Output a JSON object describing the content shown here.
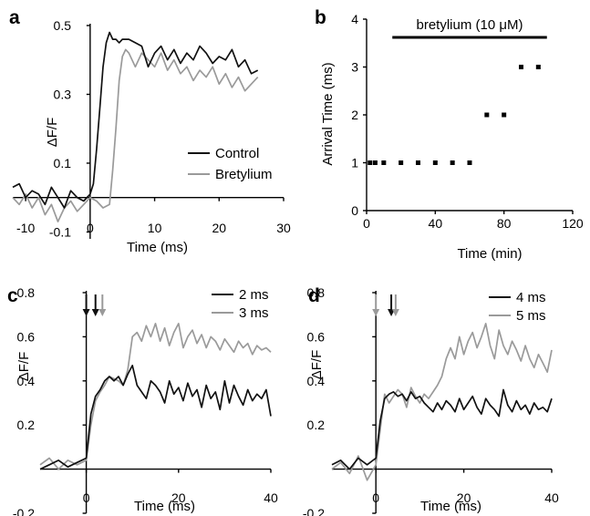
{
  "colors": {
    "black": "#111111",
    "gray": "#9a9a9a"
  },
  "chart_data": [
    {
      "panel": "a",
      "type": "line",
      "xlabel": "Time (ms)",
      "ylabel": "ΔF/F",
      "xlim": [
        -12,
        30
      ],
      "ylim": [
        -0.12,
        0.5
      ],
      "xticks": [
        -10,
        0,
        10,
        20,
        30
      ],
      "yticks": [
        -0.1,
        0.1,
        0.3,
        0.5
      ],
      "ytick_labels": [
        "-0.1",
        "0.1",
        "0.3",
        "0.5"
      ],
      "legend_position": "right",
      "series": [
        {
          "name": "Control",
          "color": "#111111",
          "x": [
            -12,
            -11,
            -10,
            -9,
            -8,
            -7,
            -6,
            -5,
            -4,
            -3,
            -2,
            -1,
            0,
            0.5,
            1,
            1.5,
            2,
            2.5,
            3,
            3.5,
            4,
            4.5,
            5,
            6,
            7,
            8,
            9,
            10,
            11,
            12,
            13,
            14,
            15,
            16,
            17,
            18,
            19,
            20,
            21,
            22,
            23,
            24,
            25,
            26
          ],
          "y": [
            0.03,
            0.04,
            0.0,
            0.02,
            0.01,
            -0.02,
            0.03,
            0.0,
            -0.03,
            0.02,
            0.0,
            -0.01,
            0.01,
            0.04,
            0.14,
            0.26,
            0.38,
            0.45,
            0.48,
            0.46,
            0.46,
            0.45,
            0.46,
            0.46,
            0.45,
            0.44,
            0.38,
            0.42,
            0.44,
            0.4,
            0.43,
            0.39,
            0.42,
            0.4,
            0.44,
            0.42,
            0.39,
            0.41,
            0.4,
            0.43,
            0.38,
            0.4,
            0.36,
            0.37
          ]
        },
        {
          "name": "Bretylium",
          "color": "#9a9a9a",
          "x": [
            -12,
            -11,
            -10,
            -9,
            -8,
            -7,
            -6,
            -5,
            -4,
            -3,
            -2,
            -1,
            0,
            1,
            2,
            3,
            3.5,
            4,
            4.5,
            5,
            5.5,
            6,
            7,
            8,
            9,
            10,
            11,
            12,
            13,
            14,
            15,
            16,
            17,
            18,
            19,
            20,
            21,
            22,
            23,
            24,
            25,
            26
          ],
          "y": [
            0.0,
            -0.02,
            0.01,
            -0.03,
            0.0,
            -0.05,
            -0.02,
            -0.07,
            -0.03,
            -0.01,
            -0.04,
            -0.02,
            0.0,
            -0.01,
            -0.03,
            -0.02,
            0.08,
            0.2,
            0.34,
            0.41,
            0.43,
            0.42,
            0.38,
            0.42,
            0.4,
            0.38,
            0.42,
            0.37,
            0.4,
            0.36,
            0.38,
            0.34,
            0.37,
            0.35,
            0.38,
            0.33,
            0.36,
            0.32,
            0.35,
            0.31,
            0.33,
            0.35
          ]
        }
      ]
    },
    {
      "panel": "b",
      "type": "scatter",
      "xlabel": "Time (min)",
      "ylabel": "Arrival Time (ms)",
      "xlim": [
        0,
        120
      ],
      "ylim": [
        0,
        4
      ],
      "xticks": [
        0,
        40,
        80,
        120
      ],
      "yticks": [
        0,
        1,
        2,
        3,
        4
      ],
      "annotation": "bretylium (10 μM)",
      "annotation_bar": [
        15,
        105
      ],
      "series": [
        {
          "x": [
            2,
            5,
            10,
            20,
            30,
            40,
            50,
            60,
            70,
            80,
            90,
            100
          ],
          "y": [
            1,
            1,
            1,
            1,
            1,
            1,
            1,
            1,
            2,
            2,
            3,
            3
          ]
        }
      ]
    },
    {
      "panel": "c",
      "type": "line",
      "xlabel": "Time (ms)",
      "ylabel": "ΔF/F",
      "xlim": [
        -10,
        40
      ],
      "ylim": [
        -0.2,
        0.8
      ],
      "xticks": [
        0,
        20,
        40
      ],
      "yticks": [
        -0.2,
        0.2,
        0.4,
        0.6,
        0.8
      ],
      "ytick_labels": [
        "-0.2",
        "0.2",
        "0.4",
        "0.6",
        "0.8"
      ],
      "arrows": [
        {
          "x": 0,
          "color": "#111111"
        },
        {
          "x": 2,
          "color": "#111111"
        },
        {
          "x": 3.5,
          "color": "#9a9a9a"
        }
      ],
      "legend_position": "top-right",
      "series": [
        {
          "name": "2 ms",
          "color": "#111111",
          "x": [
            -10,
            -8,
            -6,
            -4,
            -2,
            0,
            1,
            2,
            3,
            4,
            5,
            6,
            7,
            8,
            9,
            10,
            11,
            12,
            13,
            14,
            15,
            16,
            17,
            18,
            19,
            20,
            21,
            22,
            23,
            24,
            25,
            26,
            27,
            28,
            29,
            30,
            31,
            32,
            33,
            34,
            35,
            36,
            37,
            38,
            39,
            40
          ],
          "y": [
            0.0,
            0.02,
            0.04,
            0.01,
            0.03,
            0.05,
            0.25,
            0.33,
            0.36,
            0.4,
            0.42,
            0.4,
            0.42,
            0.38,
            0.43,
            0.47,
            0.38,
            0.35,
            0.32,
            0.4,
            0.38,
            0.35,
            0.3,
            0.4,
            0.34,
            0.37,
            0.31,
            0.39,
            0.33,
            0.36,
            0.28,
            0.38,
            0.32,
            0.35,
            0.27,
            0.4,
            0.3,
            0.38,
            0.33,
            0.29,
            0.36,
            0.31,
            0.34,
            0.32,
            0.36,
            0.24
          ]
        },
        {
          "name": "3 ms",
          "color": "#9a9a9a",
          "x": [
            -10,
            -8,
            -6,
            -4,
            -2,
            0,
            1,
            2,
            3,
            4,
            5,
            6,
            7,
            8,
            9,
            10,
            11,
            12,
            13,
            14,
            15,
            16,
            17,
            18,
            19,
            20,
            21,
            22,
            23,
            24,
            25,
            26,
            27,
            28,
            29,
            30,
            31,
            32,
            33,
            34,
            35,
            36,
            37,
            38,
            39,
            40
          ],
          "y": [
            0.02,
            0.05,
            0.0,
            0.04,
            0.02,
            0.04,
            0.2,
            0.31,
            0.35,
            0.38,
            0.42,
            0.41,
            0.4,
            0.38,
            0.45,
            0.6,
            0.62,
            0.58,
            0.65,
            0.6,
            0.66,
            0.58,
            0.64,
            0.56,
            0.62,
            0.66,
            0.55,
            0.6,
            0.63,
            0.57,
            0.61,
            0.55,
            0.6,
            0.58,
            0.54,
            0.59,
            0.56,
            0.53,
            0.58,
            0.55,
            0.57,
            0.52,
            0.56,
            0.54,
            0.55,
            0.53
          ]
        }
      ]
    },
    {
      "panel": "d",
      "type": "line",
      "xlabel": "Time (ms)",
      "ylabel": "ΔF/F",
      "xlim": [
        -10,
        40
      ],
      "ylim": [
        -0.2,
        0.8
      ],
      "xticks": [
        0,
        20,
        40
      ],
      "yticks": [
        -0.2,
        0.2,
        0.4,
        0.6,
        0.8
      ],
      "ytick_labels": [
        "-0.2",
        "0.2",
        "0.4",
        "0.6",
        "0.8"
      ],
      "arrows": [
        {
          "x": 0,
          "color": "#9a9a9a"
        },
        {
          "x": 3.5,
          "color": "#111111"
        },
        {
          "x": 4.5,
          "color": "#9a9a9a"
        }
      ],
      "legend_position": "top-right",
      "series": [
        {
          "name": "4 ms",
          "color": "#111111",
          "x": [
            -10,
            -8,
            -6,
            -4,
            -2,
            0,
            1,
            2,
            3,
            4,
            5,
            6,
            7,
            8,
            9,
            10,
            11,
            12,
            13,
            14,
            15,
            16,
            17,
            18,
            19,
            20,
            21,
            22,
            23,
            24,
            25,
            26,
            27,
            28,
            29,
            30,
            31,
            32,
            33,
            34,
            35,
            36,
            37,
            38,
            39,
            40
          ],
          "y": [
            0.02,
            0.04,
            0.0,
            0.05,
            0.02,
            0.05,
            0.22,
            0.32,
            0.34,
            0.35,
            0.33,
            0.34,
            0.31,
            0.35,
            0.32,
            0.33,
            0.3,
            0.28,
            0.26,
            0.3,
            0.27,
            0.31,
            0.29,
            0.26,
            0.32,
            0.27,
            0.3,
            0.33,
            0.28,
            0.25,
            0.32,
            0.29,
            0.27,
            0.24,
            0.36,
            0.29,
            0.26,
            0.31,
            0.27,
            0.29,
            0.25,
            0.3,
            0.27,
            0.28,
            0.26,
            0.32
          ]
        },
        {
          "name": "5 ms",
          "color": "#9a9a9a",
          "x": [
            -10,
            -8,
            -6,
            -4,
            -2,
            0,
            1,
            2,
            3,
            4,
            5,
            6,
            7,
            8,
            9,
            10,
            11,
            12,
            13,
            14,
            15,
            16,
            17,
            18,
            19,
            20,
            21,
            22,
            23,
            24,
            25,
            26,
            27,
            28,
            29,
            30,
            31,
            32,
            33,
            34,
            35,
            36,
            37,
            38,
            39,
            40
          ],
          "y": [
            0.0,
            0.03,
            -0.02,
            0.06,
            -0.05,
            0.02,
            0.18,
            0.34,
            0.3,
            0.33,
            0.36,
            0.34,
            0.28,
            0.37,
            0.33,
            0.3,
            0.34,
            0.32,
            0.35,
            0.38,
            0.42,
            0.5,
            0.55,
            0.5,
            0.6,
            0.52,
            0.58,
            0.62,
            0.55,
            0.6,
            0.66,
            0.56,
            0.5,
            0.63,
            0.56,
            0.52,
            0.58,
            0.54,
            0.49,
            0.56,
            0.5,
            0.46,
            0.52,
            0.48,
            0.44,
            0.54
          ]
        }
      ]
    }
  ]
}
